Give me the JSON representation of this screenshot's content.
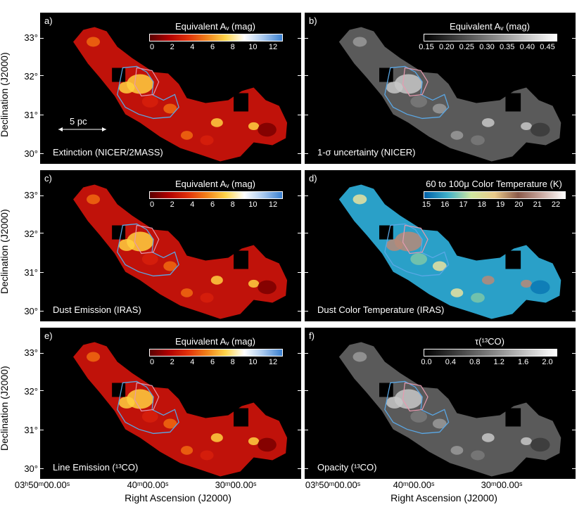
{
  "panels": [
    {
      "letter": "a)",
      "title": "Extinction (NICER/2MASS)",
      "colorbar_title": "Equivalent Aᵥ (mag)",
      "colorbar_ticks": [
        "0",
        "2",
        "4",
        "6",
        "8",
        "10",
        "12"
      ],
      "colormap": "heat",
      "map": "hot"
    },
    {
      "letter": "b)",
      "title": "1-σ uncertainty (NICER)",
      "colorbar_title": "Equivalent Aᵥ (mag)",
      "colorbar_ticks": [
        "0.15",
        "0.20",
        "0.25",
        "0.30",
        "0.35",
        "0.40",
        "0.45"
      ],
      "colormap": "gray",
      "map": "gray"
    },
    {
      "letter": "c)",
      "title": "Dust Emission (IRAS)",
      "colorbar_title": "Equivalent Aᵥ (mag)",
      "colorbar_ticks": [
        "0",
        "2",
        "4",
        "6",
        "8",
        "10",
        "12"
      ],
      "colormap": "heat",
      "map": "hot"
    },
    {
      "letter": "d)",
      "title": "Dust Color Temperature (IRAS)",
      "colorbar_title": "60 to 100μ Color Temperature (K)",
      "colorbar_ticks": [
        "15",
        "16",
        "17",
        "18",
        "19",
        "20",
        "21",
        "22"
      ],
      "colormap": "temp",
      "map": "temp"
    },
    {
      "letter": "e)",
      "title": "Line Emission (¹³CO)",
      "colorbar_title": "Equivalent Aᵥ (mag)",
      "colorbar_ticks": [
        "0",
        "2",
        "4",
        "6",
        "8",
        "10",
        "12"
      ],
      "colormap": "heat",
      "map": "hot"
    },
    {
      "letter": "f)",
      "title": "Opacity (¹³CO)",
      "colorbar_title": "τ(¹³CO)",
      "colorbar_ticks": [
        "0.0",
        "0.4",
        "0.8",
        "1.2",
        "1.6",
        "2.0"
      ],
      "colormap": "gray",
      "map": "gray"
    }
  ],
  "scale_bar_label": "5 pc",
  "y_axis": {
    "label": "Declination (J2000)",
    "ticks": [
      "33°",
      "32°",
      "31°",
      "30°"
    ]
  },
  "x_axis": {
    "label": "Right Ascension (J2000)",
    "ticks": [
      "03ʰ50ᵐ00.00ˢ",
      "40ᵐ00.00ˢ",
      "30ᵐ00.00ˢ"
    ]
  },
  "colors": {
    "background": "#000000",
    "contour": "#5aa8e6",
    "contour_pink": "#e89ab0"
  }
}
